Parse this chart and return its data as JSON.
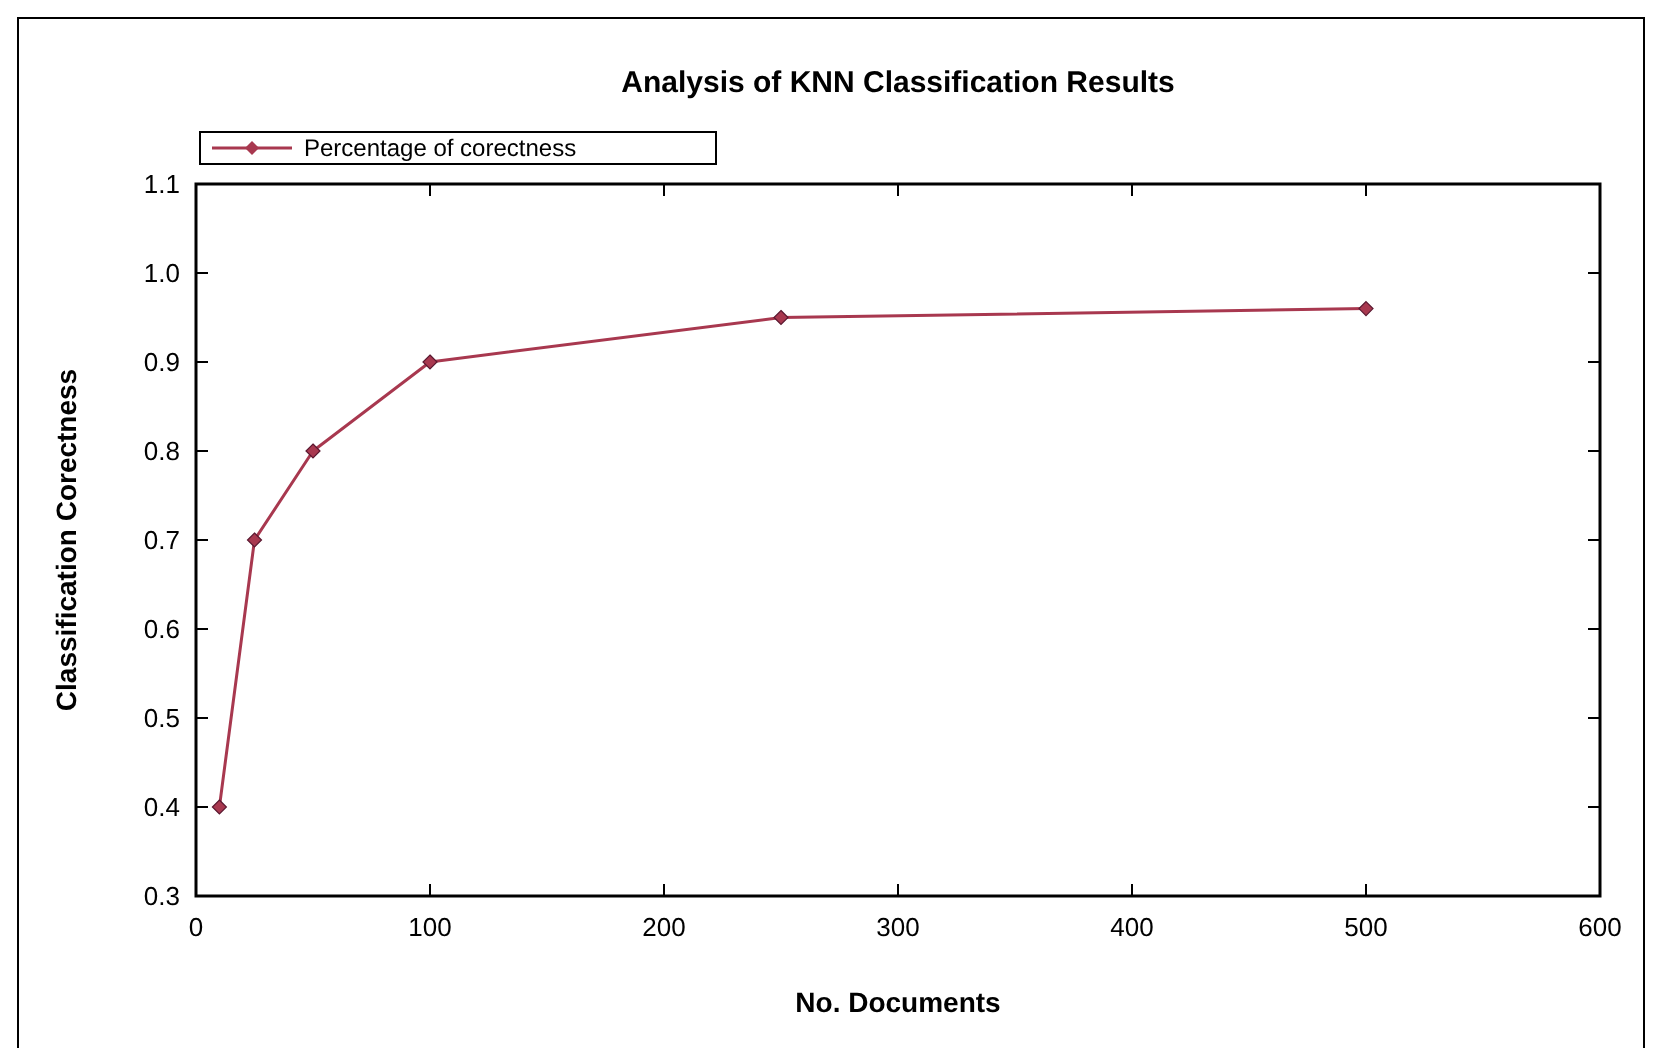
{
  "chart_data": {
    "type": "line",
    "title": "Analysis of KNN Classification Results",
    "xlabel": "No. Documents",
    "ylabel": "Classification Corectness",
    "x": [
      10,
      25,
      50,
      100,
      250,
      500
    ],
    "series": [
      {
        "name": "Percentage of corectness",
        "color": "#a8384f",
        "values": [
          0.4,
          0.7,
          0.8,
          0.9,
          0.95,
          0.96
        ]
      }
    ],
    "xlim": [
      0,
      600
    ],
    "xticks": [
      0,
      100,
      200,
      300,
      400,
      500,
      600
    ],
    "ylim": [
      0.3,
      1.1
    ],
    "yticks": [
      0.3,
      0.4,
      0.5,
      0.6,
      0.7,
      0.8,
      0.9,
      {
        "value": 1,
        "label": "1.0"
      },
      1.1
    ],
    "legend": "top left",
    "marker": "diamond",
    "line_style": "solid",
    "grid": false
  }
}
